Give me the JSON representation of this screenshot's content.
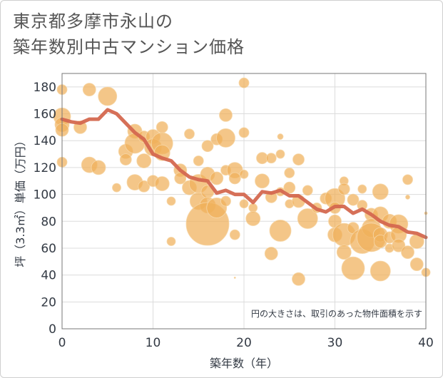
{
  "chart_data": {
    "type": "scatter",
    "title_lines": [
      "東京都多摩市永山の",
      "築年数別中古マンション価格"
    ],
    "xlabel": "築年数（年）",
    "ylabel": "坪（3.3㎡）単価（万円）",
    "xlim": [
      0,
      40
    ],
    "ylim": [
      0,
      190
    ],
    "xticks": [
      0,
      10,
      20,
      30,
      40
    ],
    "yticks": [
      0,
      20,
      40,
      60,
      80,
      100,
      120,
      140,
      160,
      180
    ],
    "grid": true,
    "note": "円の大きさは、取引のあった物件面積を示す",
    "colors": {
      "bubble": "#f0b05a",
      "line": "#d4684f"
    },
    "trend": {
      "x": [
        0,
        1,
        2,
        3,
        4,
        5,
        6,
        7,
        8,
        9,
        10,
        11,
        12,
        13,
        14,
        15,
        16,
        17,
        18,
        19,
        20,
        21,
        22,
        23,
        24,
        25,
        26,
        27,
        28,
        29,
        30,
        31,
        32,
        33,
        34,
        35,
        36,
        37,
        38,
        39,
        40
      ],
      "y": [
        156,
        154,
        153,
        156,
        156,
        163,
        160,
        153,
        146,
        141,
        130,
        127,
        125,
        118,
        113,
        111,
        110,
        101,
        103,
        100,
        100,
        94,
        102,
        101,
        103,
        99,
        99,
        94,
        89,
        87,
        91,
        91,
        86,
        89,
        85,
        80,
        77,
        76,
        72,
        71,
        68
      ]
    },
    "points": [
      {
        "x": 0,
        "y": 178,
        "s": 7
      },
      {
        "x": 0,
        "y": 158,
        "s": 12
      },
      {
        "x": 0,
        "y": 152,
        "s": 10
      },
      {
        "x": 0,
        "y": 148,
        "s": 9
      },
      {
        "x": 0,
        "y": 124,
        "s": 7
      },
      {
        "x": 2,
        "y": 150,
        "s": 9
      },
      {
        "x": 3,
        "y": 178,
        "s": 9
      },
      {
        "x": 3,
        "y": 122,
        "s": 11
      },
      {
        "x": 4,
        "y": 120,
        "s": 10
      },
      {
        "x": 5,
        "y": 173,
        "s": 13
      },
      {
        "x": 6,
        "y": 105,
        "s": 6
      },
      {
        "x": 7,
        "y": 132,
        "s": 10
      },
      {
        "x": 7,
        "y": 126,
        "s": 8
      },
      {
        "x": 8,
        "y": 147,
        "s": 10
      },
      {
        "x": 8,
        "y": 138,
        "s": 14
      },
      {
        "x": 8,
        "y": 109,
        "s": 11
      },
      {
        "x": 9,
        "y": 125,
        "s": 10
      },
      {
        "x": 9,
        "y": 106,
        "s": 8
      },
      {
        "x": 9,
        "y": 143,
        "s": 8
      },
      {
        "x": 10,
        "y": 143,
        "s": 10
      },
      {
        "x": 10,
        "y": 135,
        "s": 12
      },
      {
        "x": 10,
        "y": 110,
        "s": 8
      },
      {
        "x": 11,
        "y": 150,
        "s": 8
      },
      {
        "x": 11,
        "y": 138,
        "s": 15
      },
      {
        "x": 11,
        "y": 131,
        "s": 11
      },
      {
        "x": 11,
        "y": 108,
        "s": 10
      },
      {
        "x": 12,
        "y": 95,
        "s": 6
      },
      {
        "x": 12,
        "y": 65,
        "s": 6
      },
      {
        "x": 13,
        "y": 118,
        "s": 9
      },
      {
        "x": 13,
        "y": 112,
        "s": 8
      },
      {
        "x": 14,
        "y": 105,
        "s": 10
      },
      {
        "x": 14,
        "y": 145,
        "s": 7
      },
      {
        "x": 15,
        "y": 125,
        "s": 7
      },
      {
        "x": 15,
        "y": 108,
        "s": 13
      },
      {
        "x": 15,
        "y": 95,
        "s": 12
      },
      {
        "x": 16,
        "y": 136,
        "s": 8
      },
      {
        "x": 16,
        "y": 115,
        "s": 10
      },
      {
        "x": 16,
        "y": 102,
        "s": 9
      },
      {
        "x": 16,
        "y": 92,
        "s": 11
      },
      {
        "x": 16,
        "y": 78,
        "s": 30
      },
      {
        "x": 17,
        "y": 141,
        "s": 8
      },
      {
        "x": 17,
        "y": 112,
        "s": 9
      },
      {
        "x": 17,
        "y": 90,
        "s": 14
      },
      {
        "x": 18,
        "y": 159,
        "s": 9
      },
      {
        "x": 18,
        "y": 142,
        "s": 13
      },
      {
        "x": 18,
        "y": 118,
        "s": 7
      },
      {
        "x": 18,
        "y": 95,
        "s": 7
      },
      {
        "x": 19,
        "y": 118,
        "s": 11
      },
      {
        "x": 19,
        "y": 112,
        "s": 8
      },
      {
        "x": 19,
        "y": 70,
        "s": 7
      },
      {
        "x": 20,
        "y": 183,
        "s": 7
      },
      {
        "x": 20,
        "y": 146,
        "s": 7
      },
      {
        "x": 20,
        "y": 115,
        "s": 6
      },
      {
        "x": 20,
        "y": 93,
        "s": 6
      },
      {
        "x": 21,
        "y": 90,
        "s": 6
      },
      {
        "x": 21,
        "y": 82,
        "s": 10
      },
      {
        "x": 22,
        "y": 127,
        "s": 8
      },
      {
        "x": 22,
        "y": 110,
        "s": 10
      },
      {
        "x": 23,
        "y": 127,
        "s": 7
      },
      {
        "x": 23,
        "y": 98,
        "s": 8
      },
      {
        "x": 23,
        "y": 56,
        "s": 9
      },
      {
        "x": 24,
        "y": 143,
        "s": 4
      },
      {
        "x": 24,
        "y": 130,
        "s": 6
      },
      {
        "x": 24,
        "y": 102,
        "s": 6
      },
      {
        "x": 24,
        "y": 73,
        "s": 15
      },
      {
        "x": 25,
        "y": 116,
        "s": 7
      },
      {
        "x": 25,
        "y": 105,
        "s": 8
      },
      {
        "x": 25,
        "y": 93,
        "s": 6
      },
      {
        "x": 26,
        "y": 126,
        "s": 8
      },
      {
        "x": 26,
        "y": 95,
        "s": 9
      },
      {
        "x": 26,
        "y": 37,
        "s": 9
      },
      {
        "x": 27,
        "y": 103,
        "s": 7
      },
      {
        "x": 27,
        "y": 82,
        "s": 14
      },
      {
        "x": 28,
        "y": 90,
        "s": 7
      },
      {
        "x": 29,
        "y": 97,
        "s": 8
      },
      {
        "x": 30,
        "y": 97,
        "s": 14
      },
      {
        "x": 30,
        "y": 90,
        "s": 8
      },
      {
        "x": 30,
        "y": 80,
        "s": 9
      },
      {
        "x": 30,
        "y": 70,
        "s": 10
      },
      {
        "x": 31,
        "y": 110,
        "s": 6
      },
      {
        "x": 31,
        "y": 104,
        "s": 8
      },
      {
        "x": 31,
        "y": 70,
        "s": 16
      },
      {
        "x": 31,
        "y": 57,
        "s": 10
      },
      {
        "x": 32,
        "y": 96,
        "s": 8
      },
      {
        "x": 32,
        "y": 75,
        "s": 8
      },
      {
        "x": 32,
        "y": 45,
        "s": 16
      },
      {
        "x": 33,
        "y": 104,
        "s": 6
      },
      {
        "x": 33,
        "y": 92,
        "s": 7
      },
      {
        "x": 33,
        "y": 65,
        "s": 17
      },
      {
        "x": 34,
        "y": 85,
        "s": 9
      },
      {
        "x": 34,
        "y": 75,
        "s": 13
      },
      {
        "x": 34,
        "y": 68,
        "s": 20
      },
      {
        "x": 35,
        "y": 102,
        "s": 11
      },
      {
        "x": 35,
        "y": 85,
        "s": 11
      },
      {
        "x": 35,
        "y": 70,
        "s": 10
      },
      {
        "x": 35,
        "y": 65,
        "s": 9
      },
      {
        "x": 35,
        "y": 43,
        "s": 14
      },
      {
        "x": 36,
        "y": 80,
        "s": 10
      },
      {
        "x": 36,
        "y": 68,
        "s": 8
      },
      {
        "x": 36,
        "y": 60,
        "s": 6
      },
      {
        "x": 37,
        "y": 78,
        "s": 13
      },
      {
        "x": 37,
        "y": 70,
        "s": 11
      },
      {
        "x": 37,
        "y": 62,
        "s": 9
      },
      {
        "x": 38,
        "y": 111,
        "s": 7
      },
      {
        "x": 38,
        "y": 57,
        "s": 9
      },
      {
        "x": 38,
        "y": 98,
        "s": 3
      },
      {
        "x": 39,
        "y": 65,
        "s": 10
      },
      {
        "x": 39,
        "y": 48,
        "s": 9
      },
      {
        "x": 40,
        "y": 86,
        "s": 2
      },
      {
        "x": 40,
        "y": 42,
        "s": 6
      },
      {
        "x": 19,
        "y": 38,
        "s": 1
      }
    ]
  }
}
